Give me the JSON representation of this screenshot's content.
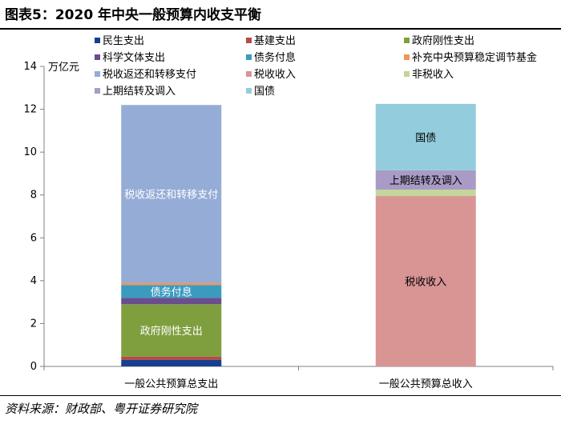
{
  "title": "图表5：2020 年中央一般预算内收支平衡",
  "source": "资料来源：财政部、粤开证券研究院",
  "chart_data": {
    "type": "bar",
    "stacked": true,
    "ylim": [
      0,
      14
    ],
    "yticks": [
      0,
      2,
      4,
      6,
      8,
      10,
      12,
      14
    ],
    "unit_label": "万亿元",
    "grid": false,
    "legend_position": "top",
    "categories": [
      "一般公共预算总支出",
      "一般公共预算总收入"
    ],
    "series": [
      {
        "name": "民生支出",
        "color": "#173f8f",
        "values": [
          0.3,
          0
        ],
        "label": ""
      },
      {
        "name": "基建支出",
        "color": "#b84a4a",
        "values": [
          0.15,
          0
        ],
        "label": ""
      },
      {
        "name": "政府刚性支出",
        "color": "#7f9f3f",
        "values": [
          2.45,
          0
        ],
        "label": "政府刚性支出"
      },
      {
        "name": "科学文体支出",
        "color": "#6a4d8c",
        "values": [
          0.3,
          0
        ],
        "label": ""
      },
      {
        "name": "债务付息",
        "color": "#3a9bbf",
        "values": [
          0.6,
          0
        ],
        "label": "债务付息"
      },
      {
        "name": "补充中央预算稳定调节基金",
        "color": "#f0965a",
        "values": [
          0.1,
          0
        ],
        "label": ""
      },
      {
        "name": "税收返还和转移支付",
        "color": "#95acd6",
        "values": [
          8.3,
          0
        ],
        "label": "税收返还和转移支付"
      },
      {
        "name": "税收收入",
        "color": "#d99494",
        "values": [
          0,
          7.95
        ],
        "label": "税收收入"
      },
      {
        "name": "非税收入",
        "color": "#c3d69b",
        "values": [
          0,
          0.3
        ],
        "label": ""
      },
      {
        "name": "上期结转及调入",
        "color": "#a99bc6",
        "values": [
          0,
          0.9
        ],
        "label": "上期结转及调入"
      },
      {
        "name": "国债",
        "color": "#93cddd",
        "values": [
          0,
          3.1
        ],
        "label": "国债"
      }
    ]
  }
}
